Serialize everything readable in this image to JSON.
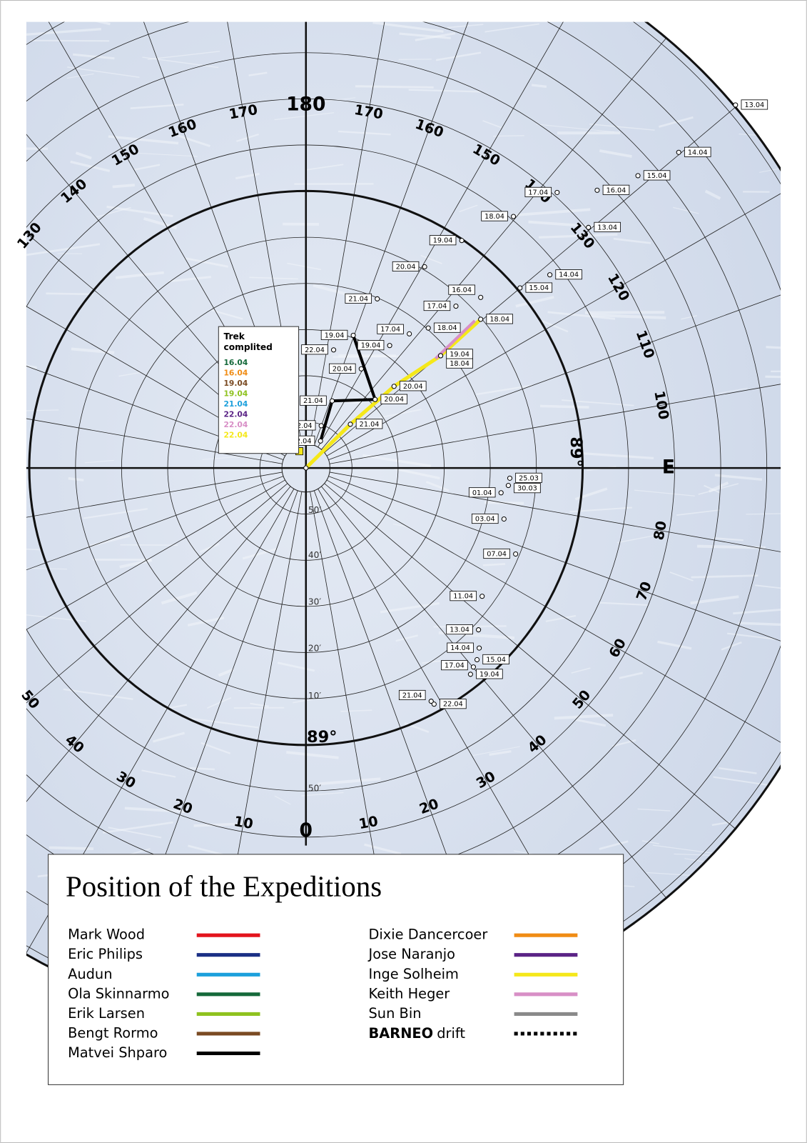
{
  "map": {
    "meridian_labels": [
      "180",
      "170",
      "160",
      "150",
      "140",
      "130",
      "120",
      "110",
      "100",
      "E",
      "80",
      "70",
      "60",
      "50",
      "40",
      "30",
      "20",
      "10",
      "0",
      "10",
      "20",
      "30",
      "40",
      "50",
      "130",
      "140",
      "150",
      "160",
      "170"
    ],
    "latitude_labels": [
      "89°",
      "89°"
    ],
    "minute_labels": [
      "50′",
      "40′",
      "30′",
      "20′",
      "10′",
      "50′"
    ],
    "track_labels": {
      "mark_wood": [
        "13.04",
        "14.04",
        "15.04",
        "16.04",
        "17.04",
        "18.04",
        "19.04",
        "20.04",
        "21.04",
        "22.04"
      ],
      "eric_philips": [
        "13.04",
        "14.04",
        "15.04",
        "16.04",
        "17.04",
        "18.04",
        "17.04",
        "19.04",
        "20.04",
        "21.04",
        "22.04"
      ],
      "matvei_shparo": [
        "19.04",
        "20.04",
        "22.04"
      ],
      "inge_solheim": [
        "21.04",
        "20.04",
        "18.04",
        "18.04"
      ],
      "keith_heger": [
        "19.04"
      ],
      "barneo": [
        "25.03",
        "30.03",
        "01.04",
        "03.04",
        "07.04",
        "11.04",
        "13.04",
        "14.04",
        "15.04",
        "17.04",
        "19.04",
        "21.04",
        "22.04"
      ]
    }
  },
  "trek_box": {
    "title_lines": [
      "Trek",
      "complited"
    ],
    "dates": [
      {
        "text": "16.04",
        "color": "#15693a"
      },
      {
        "text": "16.04",
        "color": "#f08c14"
      },
      {
        "text": "19.04",
        "color": "#7a4a22"
      },
      {
        "text": "19.04",
        "color": "#8fc21f"
      },
      {
        "text": "21.04",
        "color": "#1ca0dc"
      },
      {
        "text": "22.04",
        "color": "#5b2386"
      },
      {
        "text": "22.04",
        "color": "#d88fc6"
      },
      {
        "text": "22.04",
        "color": "#f5e81a"
      }
    ]
  },
  "legend": {
    "title": "Position of the Expeditions",
    "left": [
      {
        "name": "Mark Wood",
        "color": "#e3141d"
      },
      {
        "name": "Eric Philips",
        "color": "#1a2f85"
      },
      {
        "name": "Audun",
        "color": "#1ca0dc"
      },
      {
        "name": "Ola Skinnarmo",
        "color": "#15693a"
      },
      {
        "name": "Erik Larsen",
        "color": "#8fc21f"
      },
      {
        "name": "Bengt Rormo",
        "color": "#7a4a22"
      },
      {
        "name": "Matvei Shparo",
        "color": "#000000"
      }
    ],
    "right": [
      {
        "name": "Dixie Dancercoer",
        "color": "#f08c14"
      },
      {
        "name": "Jose Naranjo",
        "color": "#5b2386"
      },
      {
        "name": "Inge Solheim",
        "color": "#f5e81a"
      },
      {
        "name": "Keith Heger",
        "color": "#d88fc6"
      },
      {
        "name": "Sun Bin",
        "color": "#8a8a8a"
      }
    ],
    "barneo": {
      "bold": "BARNEO",
      "rest": "drift",
      "color": "#000000"
    }
  }
}
